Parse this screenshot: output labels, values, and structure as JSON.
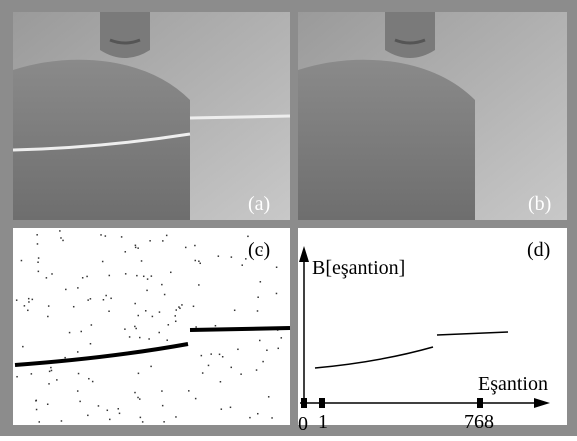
{
  "panels": {
    "a": {
      "label": "(a)"
    },
    "b": {
      "label": "(b)"
    },
    "c": {
      "label": "(c)"
    },
    "d": {
      "label": "(d)",
      "y_axis_label": "B[eşantion]",
      "x_axis_label": "Eşantion",
      "x_tick_labels": [
        "0",
        "1",
        "768"
      ]
    }
  }
}
